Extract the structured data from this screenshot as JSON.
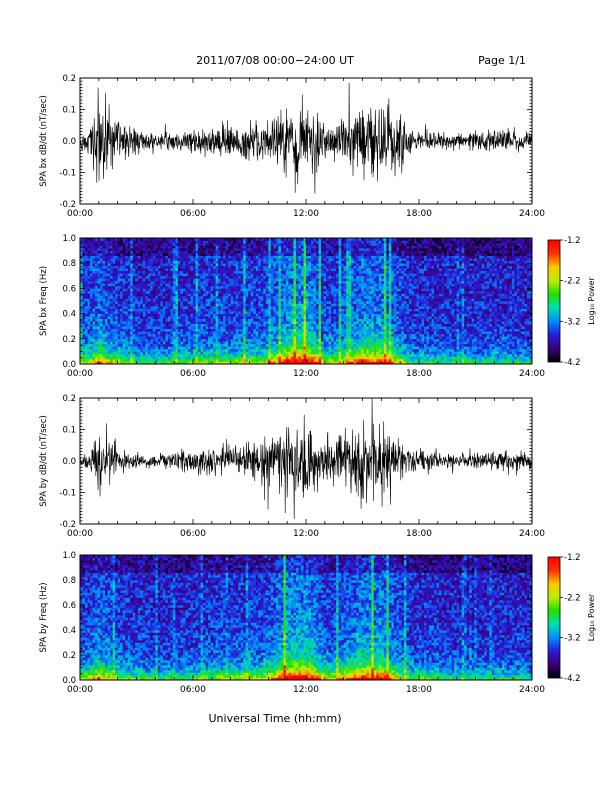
{
  "header": {
    "title": "2011/07/08  00:00−24:00 UT",
    "page_label": "Page 1/1"
  },
  "footer": {
    "xlabel": "Universal Time (hh:mm)"
  },
  "chart_data": [
    {
      "type": "line",
      "id": "bx-waveform",
      "ylabel": "SPA bx dB/dt (nT/sec)",
      "xlim": [
        "00:00",
        "24:00"
      ],
      "ylim": [
        -0.2,
        0.2
      ],
      "x_ticks": [
        "00:00",
        "06:00",
        "12:00",
        "18:00",
        "24:00"
      ],
      "y_ticks": [
        "-0.2",
        "-0.1",
        "0.0",
        "0.1",
        "0.2"
      ],
      "series": [
        {
          "color": "#000000",
          "x_hours": [
            0,
            0.5,
            1,
            1.5,
            2,
            2.5,
            3,
            3.5,
            4,
            4.5,
            5,
            5.5,
            6,
            6.5,
            7,
            7.5,
            8,
            8.5,
            9,
            9.5,
            10,
            10.5,
            11,
            11.5,
            12,
            12.5,
            13,
            13.5,
            14,
            14.5,
            15,
            15.5,
            16,
            16.5,
            17,
            17.5,
            18,
            18.5,
            19,
            19.5,
            20,
            20.5,
            21,
            21.5,
            22,
            22.5,
            23,
            23.5,
            24
          ],
          "amplitude": [
            0.04,
            0.08,
            0.2,
            0.15,
            0.09,
            0.07,
            0.06,
            0.04,
            0.04,
            0.04,
            0.05,
            0.05,
            0.05,
            0.07,
            0.06,
            0.09,
            0.07,
            0.08,
            0.1,
            0.08,
            0.11,
            0.12,
            0.2,
            0.2,
            0.2,
            0.18,
            0.09,
            0.08,
            0.12,
            0.14,
            0.2,
            0.18,
            0.2,
            0.15,
            0.11,
            0.06,
            0.04,
            0.05,
            0.04,
            0.04,
            0.05,
            0.04,
            0.04,
            0.05,
            0.05,
            0.05,
            0.05,
            0.05,
            0.04
          ]
        }
      ]
    },
    {
      "type": "heatmap",
      "id": "bx-spectrogram",
      "ylabel": "SPA bx Freq (Hz)",
      "xlim": [
        "00:00",
        "24:00"
      ],
      "ylim": [
        0.0,
        1.0
      ],
      "x_ticks": [
        "00:00",
        "06:00",
        "12:00",
        "18:00",
        "24:00"
      ],
      "y_ticks": [
        "0.0",
        "0.2",
        "0.4",
        "0.6",
        "0.8",
        "1.0"
      ],
      "colorbar": {
        "label": "Log₁₀ Power",
        "range": [
          -4.2,
          -1.2
        ],
        "ticks": [
          "-1.2",
          "-2.2",
          "-3.2",
          "-4.2"
        ],
        "colors": [
          "#000000",
          "#3a0078",
          "#2a1bd8",
          "#008cff",
          "#00e0b0",
          "#22dd00",
          "#b8f000",
          "#ffc800",
          "#ff3000",
          "#ff0000"
        ]
      },
      "activity_hours": [
        0,
        0.5,
        1,
        1.5,
        2,
        2.5,
        3,
        3.5,
        4,
        4.5,
        5,
        5.5,
        6,
        6.5,
        7,
        7.5,
        8,
        8.5,
        9,
        9.5,
        10,
        10.5,
        11,
        11.5,
        12,
        12.5,
        13,
        13.5,
        14,
        14.5,
        15,
        15.5,
        16,
        16.5,
        17,
        17.5,
        18,
        18.5,
        19,
        19.5,
        20,
        20.5,
        21,
        21.5,
        22,
        22.5,
        23,
        23.5,
        24
      ],
      "activity": [
        0.45,
        0.55,
        0.75,
        0.6,
        0.5,
        0.45,
        0.4,
        0.35,
        0.35,
        0.35,
        0.4,
        0.4,
        0.4,
        0.45,
        0.45,
        0.5,
        0.45,
        0.5,
        0.55,
        0.5,
        0.6,
        0.7,
        0.9,
        0.95,
        0.95,
        0.8,
        0.55,
        0.5,
        0.6,
        0.7,
        0.85,
        0.8,
        0.85,
        0.7,
        0.55,
        0.4,
        0.35,
        0.4,
        0.35,
        0.35,
        0.35,
        0.35,
        0.35,
        0.35,
        0.35,
        0.35,
        0.35,
        0.35,
        0.3
      ]
    },
    {
      "type": "line",
      "id": "by-waveform",
      "ylabel": "SPA by dB/dt (nT/sec)",
      "xlim": [
        "00:00",
        "24:00"
      ],
      "ylim": [
        -0.2,
        0.2
      ],
      "x_ticks": [
        "00:00",
        "06:00",
        "12:00",
        "18:00",
        "24:00"
      ],
      "y_ticks": [
        "-0.2",
        "-0.1",
        "0.0",
        "0.1",
        "0.2"
      ],
      "series": [
        {
          "color": "#000000",
          "x_hours": [
            0,
            0.5,
            1,
            1.5,
            2,
            2.5,
            3,
            3.5,
            4,
            4.5,
            5,
            5.5,
            6,
            6.5,
            7,
            7.5,
            8,
            8.5,
            9,
            9.5,
            10,
            10.5,
            11,
            11.5,
            12,
            12.5,
            13,
            13.5,
            14,
            14.5,
            15,
            15.5,
            16,
            16.5,
            17,
            17.5,
            18,
            18.5,
            19,
            19.5,
            20,
            20.5,
            21,
            21.5,
            22,
            22.5,
            23,
            23.5,
            24
          ],
          "amplitude": [
            0.03,
            0.05,
            0.15,
            0.12,
            0.08,
            0.05,
            0.04,
            0.04,
            0.03,
            0.04,
            0.04,
            0.04,
            0.05,
            0.06,
            0.07,
            0.08,
            0.08,
            0.08,
            0.09,
            0.08,
            0.12,
            0.14,
            0.2,
            0.2,
            0.2,
            0.17,
            0.09,
            0.09,
            0.13,
            0.16,
            0.2,
            0.18,
            0.2,
            0.14,
            0.1,
            0.06,
            0.05,
            0.05,
            0.04,
            0.04,
            0.05,
            0.04,
            0.04,
            0.04,
            0.04,
            0.05,
            0.04,
            0.05,
            0.04
          ]
        }
      ]
    },
    {
      "type": "heatmap",
      "id": "by-spectrogram",
      "ylabel": "SPA by Freq (Hz)",
      "xlim": [
        "00:00",
        "24:00"
      ],
      "ylim": [
        0.0,
        1.0
      ],
      "x_ticks": [
        "00:00",
        "06:00",
        "12:00",
        "18:00",
        "24:00"
      ],
      "y_ticks": [
        "0.0",
        "0.2",
        "0.4",
        "0.6",
        "0.8",
        "1.0"
      ],
      "colorbar": {
        "label": "Log₁₀ Power",
        "range": [
          -4.2,
          -1.2
        ],
        "ticks": [
          "-1.2",
          "-2.2",
          "-3.2",
          "-4.2"
        ],
        "colors": [
          "#000000",
          "#3a0078",
          "#2a1bd8",
          "#008cff",
          "#00e0b0",
          "#22dd00",
          "#b8f000",
          "#ffc800",
          "#ff3000",
          "#ff0000"
        ]
      },
      "activity_hours": [
        0,
        0.5,
        1,
        1.5,
        2,
        2.5,
        3,
        3.5,
        4,
        4.5,
        5,
        5.5,
        6,
        6.5,
        7,
        7.5,
        8,
        8.5,
        9,
        9.5,
        10,
        10.5,
        11,
        11.5,
        12,
        12.5,
        13,
        13.5,
        14,
        14.5,
        15,
        15.5,
        16,
        16.5,
        17,
        17.5,
        18,
        18.5,
        19,
        19.5,
        20,
        20.5,
        21,
        21.5,
        22,
        22.5,
        23,
        23.5,
        24
      ],
      "activity": [
        0.45,
        0.55,
        0.7,
        0.6,
        0.5,
        0.45,
        0.4,
        0.4,
        0.35,
        0.35,
        0.4,
        0.4,
        0.4,
        0.45,
        0.45,
        0.5,
        0.45,
        0.5,
        0.55,
        0.5,
        0.6,
        0.75,
        0.95,
        0.95,
        0.95,
        0.8,
        0.55,
        0.55,
        0.65,
        0.75,
        0.9,
        0.85,
        0.9,
        0.7,
        0.55,
        0.45,
        0.4,
        0.45,
        0.4,
        0.35,
        0.35,
        0.35,
        0.35,
        0.35,
        0.35,
        0.35,
        0.35,
        0.35,
        0.3
      ]
    }
  ]
}
